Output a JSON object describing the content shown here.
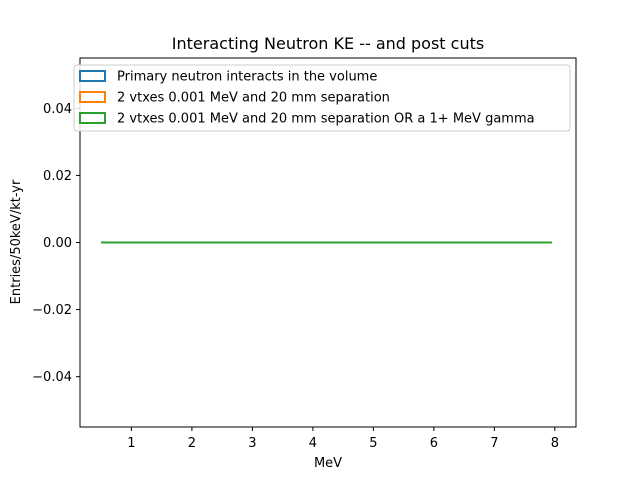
{
  "chart_data": {
    "type": "line",
    "title": "Interacting Neutron KE -- and post cuts",
    "xlabel": "MeV",
    "ylabel": "Entries/50keV/kt-yr",
    "xlim": [
      0.15,
      8.35
    ],
    "ylim": [
      -0.055,
      0.055
    ],
    "xticks": [
      1,
      2,
      3,
      4,
      5,
      6,
      7,
      8
    ],
    "xtick_labels": [
      "1",
      "2",
      "3",
      "4",
      "5",
      "6",
      "7",
      "8"
    ],
    "yticks": [
      0.04,
      0.02,
      0.0,
      -0.02,
      -0.04
    ],
    "ytick_labels": [
      "0.04",
      "0.02",
      "0.00",
      "−0.02",
      "−0.04"
    ],
    "grid": false,
    "legend_position": "top-left",
    "series": [
      {
        "name": "Primary neutron interacts in the volume",
        "color": "#1f77b4",
        "x": [
          0.5,
          7.95
        ],
        "y": [
          0,
          0
        ]
      },
      {
        "name": "2 vtxes 0.001 MeV and 20 mm separation",
        "color": "#ff7f0e",
        "x": [
          0.5,
          7.95
        ],
        "y": [
          0,
          0
        ]
      },
      {
        "name": "2 vtxes 0.001 MeV and 20 mm separation OR a 1+ MeV gamma",
        "color": "#2ca02c",
        "x": [
          0.5,
          7.95
        ],
        "y": [
          0,
          0
        ]
      }
    ]
  }
}
